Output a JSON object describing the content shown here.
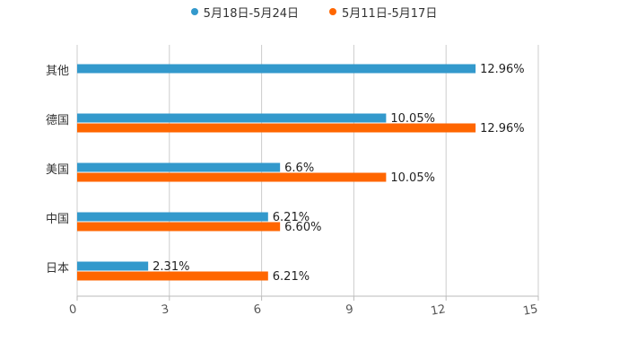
{
  "chart_data": {
    "type": "bar",
    "orientation": "horizontal",
    "categories": [
      "其他",
      "德国",
      "美国",
      "中国",
      "日本"
    ],
    "series": [
      {
        "name": "5月18日-5月24日",
        "color": "#3399cc",
        "values": [
          12.96,
          10.05,
          6.6,
          6.21,
          2.31
        ],
        "labels": [
          "12.96%",
          "10.05%",
          "6.6%",
          "6.21%",
          "2.31%"
        ]
      },
      {
        "name": "5月11日-5月17日",
        "color": "#ff6600",
        "values": [
          null,
          12.96,
          10.05,
          6.6,
          6.21
        ],
        "labels": [
          null,
          "12.96%",
          "10.05%",
          "6.60%",
          "6.21%"
        ]
      }
    ],
    "xlim": [
      0,
      15
    ],
    "xticks": [
      0,
      3,
      6,
      9,
      12,
      15
    ],
    "tick_labels": [
      "0",
      "3",
      "6",
      "9",
      "12",
      "15"
    ],
    "grid": true,
    "legend_position": "top-center"
  }
}
